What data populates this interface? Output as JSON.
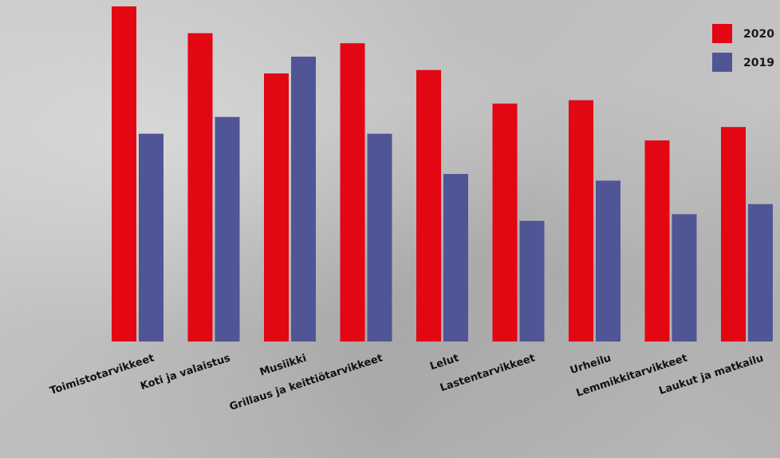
{
  "chart_data": {
    "type": "bar",
    "title": "",
    "xlabel": "",
    "ylabel": "",
    "ylim": [
      0,
      100
    ],
    "categories": [
      "Toimistotarvikkeet",
      "Koti ja valaistus",
      "Musiikki",
      "Grillaus ja keittiötarvikkeet",
      "Lelut",
      "Lastentarvikkeet",
      "Urheilu",
      "Lemmikkitarvikkeet",
      "Laukut ja matkailu"
    ],
    "series": [
      {
        "name": "2020",
        "color": "#e30613",
        "values": [
          100,
          92,
          80,
          89,
          81,
          71,
          72,
          60,
          64
        ]
      },
      {
        "name": "2019",
        "color": "#505596",
        "values": [
          62,
          67,
          85,
          62,
          50,
          36,
          48,
          38,
          41
        ]
      }
    ],
    "legend": "top-right",
    "grid": false
  }
}
